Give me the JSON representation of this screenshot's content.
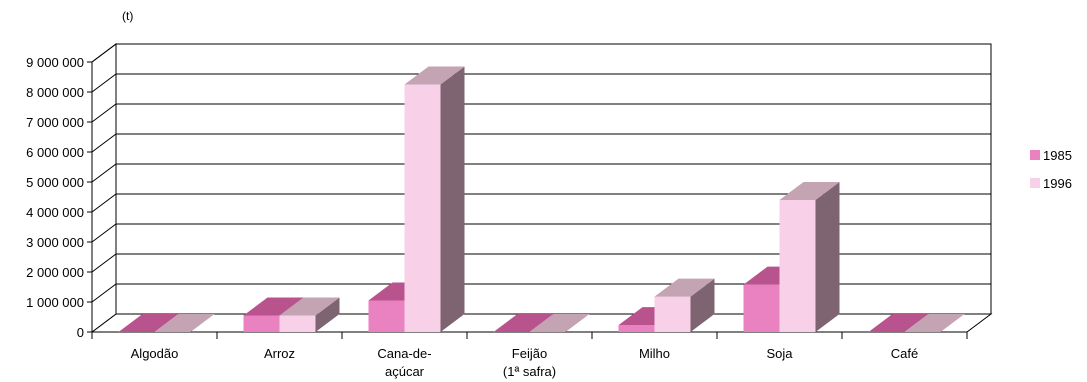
{
  "chart_data": {
    "type": "bar",
    "unit_label": "(t)",
    "categories": [
      [
        "Algodão"
      ],
      [
        "Arroz"
      ],
      [
        "Cana-de-",
        "açúcar"
      ],
      [
        "Feijão",
        "(1ª safra)"
      ],
      [
        "Milho"
      ],
      [
        "Soja"
      ],
      [
        "Café"
      ]
    ],
    "series": [
      {
        "name": "1985",
        "values": [
          0,
          550000,
          1050000,
          0,
          230000,
          1580000,
          0
        ],
        "colors": {
          "front": "#ea82c2",
          "top": "#b8538e",
          "side": "#7d6470"
        }
      },
      {
        "name": "1996",
        "values": [
          0,
          550000,
          8250000,
          0,
          1180000,
          4400000,
          0
        ],
        "colors": {
          "front": "#f8d0e8",
          "top": "#c4a3b3",
          "side": "#7d6470"
        }
      }
    ],
    "y_ticks": [
      "0",
      "1 000 000",
      "2 000 000",
      "3 000 000",
      "4 000 000",
      "5 000 000",
      "6 000 000",
      "7 000 000",
      "8 000 000",
      "9 000 000"
    ],
    "ylim": [
      0,
      9000000
    ],
    "grid": true,
    "legend_position": "right"
  }
}
